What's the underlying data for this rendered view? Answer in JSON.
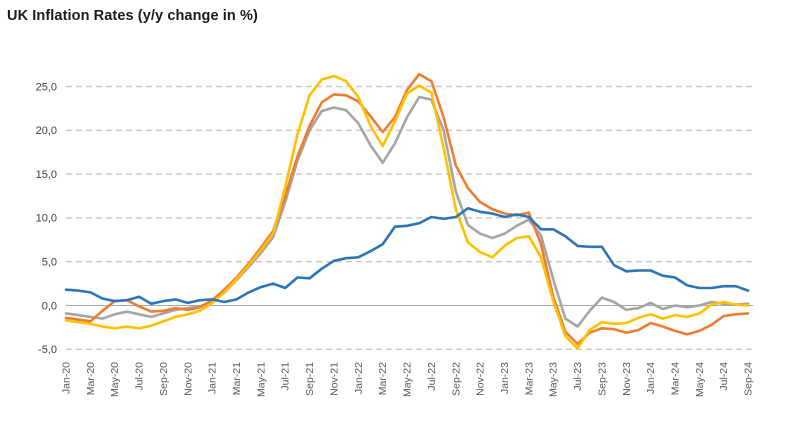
{
  "chart_data": {
    "type": "line",
    "title": "UK Inflation Rates (y/y change in %)",
    "xlabel": "",
    "ylabel": "",
    "ylim": [
      -5,
      25
    ],
    "grid": "horizontal-dashed",
    "legend": "none",
    "y_axis": {
      "ticks": [
        {
          "value": 25,
          "label": "25,0"
        },
        {
          "value": 20,
          "label": "20,0"
        },
        {
          "value": 15,
          "label": "15,0"
        },
        {
          "value": 10,
          "label": "10,0"
        },
        {
          "value": 5,
          "label": "5,0"
        },
        {
          "value": 0,
          "label": "0,0"
        },
        {
          "value": -5,
          "label": "-5,0"
        }
      ]
    },
    "x_axis": {
      "note": "monthly data Jan-2020 to Sep-2024, tick label every 2nd month",
      "labels": [
        "Jan-20",
        "Mar-20",
        "May-20",
        "Jul-20",
        "Sep-20",
        "Nov-20",
        "Jan-21",
        "Mar-21",
        "May-21",
        "Jul-21",
        "Sep-21",
        "Nov-21",
        "Jan-22",
        "Mar-22",
        "May-22",
        "Jul-22",
        "Sep-22",
        "Nov-22",
        "Jan-23",
        "Mar-23",
        "May-23",
        "Jul-23",
        "Sep-23",
        "Nov-23",
        "Jan-24",
        "Mar-24",
        "May-24",
        "Jul-24",
        "Sep-24"
      ]
    },
    "series": [
      {
        "name": "gray-series",
        "color": "#a5a5a5",
        "values": [
          -0.9,
          -1.1,
          -1.3,
          -1.5,
          -1.0,
          -0.7,
          -1.0,
          -1.3,
          -0.9,
          -0.5,
          -0.3,
          -0.1,
          0.5,
          1.5,
          2.9,
          4.4,
          6.0,
          7.8,
          11.8,
          16.5,
          20.0,
          22.2,
          22.6,
          22.3,
          20.8,
          18.3,
          16.3,
          18.5,
          21.5,
          23.8,
          23.5,
          20.0,
          13.0,
          9.2,
          8.2,
          7.7,
          8.2,
          9.1,
          9.8,
          8.0,
          3.0,
          -1.5,
          -2.4,
          -0.6,
          0.9,
          0.4,
          -0.5,
          -0.3,
          0.3,
          -0.4,
          0.0,
          -0.2,
          0.0,
          0.4,
          0.2,
          0.1,
          0.2
        ]
      },
      {
        "name": "orange-series",
        "color": "#ed7d31",
        "values": [
          -1.4,
          -1.6,
          -1.8,
          -0.6,
          0.5,
          0.6,
          -0.1,
          -0.7,
          -0.6,
          -0.3,
          -0.5,
          -0.2,
          0.6,
          1.8,
          3.2,
          4.8,
          6.6,
          8.5,
          12.5,
          17.0,
          20.5,
          23.2,
          24.1,
          24.0,
          23.3,
          21.6,
          19.8,
          21.5,
          24.6,
          26.4,
          25.6,
          21.5,
          16.0,
          13.4,
          11.8,
          11.0,
          10.5,
          10.3,
          10.6,
          7.0,
          1.0,
          -3.0,
          -4.4,
          -3.1,
          -2.6,
          -2.7,
          -3.1,
          -2.8,
          -2.0,
          -2.4,
          -2.9,
          -3.3,
          -2.9,
          -2.2,
          -1.2,
          -1.0,
          -0.9
        ]
      },
      {
        "name": "yellow-series",
        "color": "#ffc000",
        "values": [
          -1.7,
          -1.9,
          -2.1,
          -2.4,
          -2.6,
          -2.4,
          -2.6,
          -2.3,
          -1.8,
          -1.3,
          -1.0,
          -0.6,
          0.3,
          1.5,
          3.0,
          4.6,
          6.3,
          8.2,
          13.5,
          19.5,
          24.0,
          25.8,
          26.2,
          25.6,
          23.8,
          20.5,
          18.2,
          21.0,
          24.2,
          25.1,
          24.3,
          18.0,
          11.0,
          7.2,
          6.1,
          5.5,
          6.8,
          7.7,
          7.9,
          5.5,
          0.5,
          -3.5,
          -4.9,
          -2.8,
          -1.9,
          -2.1,
          -2.0,
          -1.4,
          -1.0,
          -1.5,
          -1.1,
          -1.3,
          -0.9,
          0.1,
          0.4,
          0.1,
          0.0
        ]
      },
      {
        "name": "blue-series",
        "color": "#2e75b6",
        "values": [
          1.8,
          1.7,
          1.5,
          0.8,
          0.5,
          0.6,
          1.0,
          0.2,
          0.5,
          0.7,
          0.3,
          0.6,
          0.7,
          0.4,
          0.7,
          1.5,
          2.1,
          2.5,
          2.0,
          3.2,
          3.1,
          4.2,
          5.1,
          5.4,
          5.5,
          6.2,
          7.0,
          9.0,
          9.1,
          9.4,
          10.1,
          9.9,
          10.1,
          11.1,
          10.7,
          10.5,
          10.1,
          10.4,
          10.1,
          8.7,
          8.7,
          7.9,
          6.8,
          6.7,
          6.7,
          4.6,
          3.9,
          4.0,
          4.0,
          3.4,
          3.2,
          2.3,
          2.0,
          2.0,
          2.2,
          2.2,
          1.7
        ]
      }
    ],
    "colors": {
      "gridline": "#c9c9c9",
      "zero_line": "#a6a6a6",
      "title_text": "#1b1b1b",
      "axis_text": "#595959"
    }
  }
}
